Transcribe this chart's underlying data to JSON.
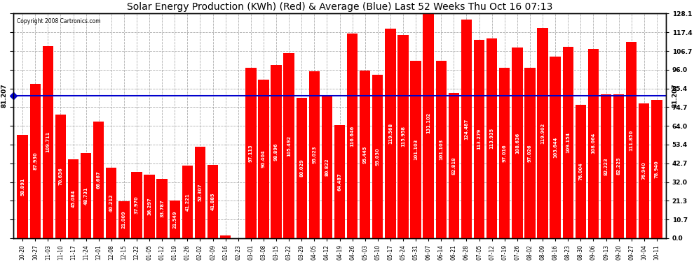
{
  "title": "Solar Energy Production (KWh) (Red) & Average (Blue) Last 52 Weeks Thu Oct 16 07:13",
  "copyright": "Copyright 2008 Cartronics.com",
  "average_value": 81.207,
  "ylim": [
    0,
    128.1
  ],
  "yticks": [
    0.0,
    10.7,
    21.3,
    32.0,
    42.7,
    53.4,
    64.0,
    74.7,
    85.4,
    96.0,
    106.7,
    117.4,
    128.1
  ],
  "bar_color": "#FF0000",
  "avg_line_color": "#0000CD",
  "background_color": "#FFFFFF",
  "grid_color": "#999999",
  "categories": [
    "10-20",
    "10-27",
    "11-03",
    "11-10",
    "11-17",
    "11-24",
    "12-01",
    "12-08",
    "12-15",
    "12-22",
    "01-05",
    "01-12",
    "01-19",
    "01-26",
    "02-02",
    "02-09",
    "02-16",
    "02-23",
    "03-01",
    "03-08",
    "03-15",
    "03-22",
    "03-29",
    "04-05",
    "04-12",
    "04-19",
    "04-26",
    "05-03",
    "05-10",
    "05-17",
    "05-24",
    "05-31",
    "06-07",
    "06-14",
    "06-21",
    "06-28",
    "07-05",
    "07-12",
    "07-19",
    "07-26",
    "08-02",
    "08-09",
    "08-16",
    "08-23",
    "08-30",
    "09-06",
    "09-13",
    "09-20",
    "09-27",
    "10-04",
    "10-11"
  ],
  "values": [
    58.891,
    87.93,
    109.711,
    70.636,
    45.084,
    48.731,
    66.667,
    40.212,
    21.009,
    37.97,
    36.297,
    33.787,
    21.549,
    41.221,
    52.307,
    41.885,
    1.413,
    0.0,
    97.113,
    90.404,
    98.896,
    105.492,
    80.029,
    95.023,
    80.822,
    64.487,
    116.646,
    95.445,
    93.03,
    119.568,
    115.958,
    101.103,
    131.102,
    101.103,
    82.818,
    124.487,
    113.279,
    113.935,
    97.016,
    108.636,
    97.026,
    119.902,
    103.644,
    109.154,
    76.004,
    108.064,
    82.223,
    82.225,
    111.85,
    76.94,
    78.94
  ],
  "label_fontsize": 4.8,
  "tick_fontsize": 6.5,
  "title_fontsize": 10
}
